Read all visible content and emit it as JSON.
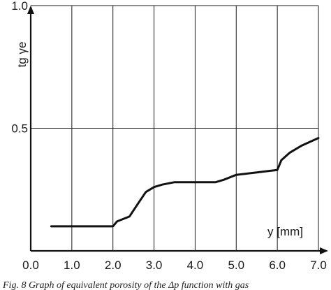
{
  "chart_data": {
    "type": "line",
    "xlabel": "y [mm]",
    "ylabel": "tg γe",
    "xlim": [
      0.0,
      7.0
    ],
    "ylim": [
      0.0,
      1.0
    ],
    "grid": true,
    "x_ticks": [
      "0.0",
      "1.0",
      "2.0",
      "3.0",
      "4.0",
      "5.0",
      "6.0",
      "7.0"
    ],
    "y_ticks": [
      {
        "value": 0.5,
        "label": "0.5"
      },
      {
        "value": 1.0,
        "label": "1.0"
      }
    ],
    "series": [
      {
        "x": [
          0.5,
          1.0,
          1.5,
          2.0,
          2.1,
          2.4,
          2.6,
          2.8,
          3.0,
          3.2,
          3.5,
          4.0,
          4.5,
          4.7,
          5.0,
          5.5,
          6.0,
          6.1,
          6.3,
          6.6,
          7.0
        ],
        "y": [
          0.1,
          0.1,
          0.1,
          0.1,
          0.12,
          0.14,
          0.19,
          0.24,
          0.26,
          0.27,
          0.28,
          0.28,
          0.28,
          0.29,
          0.31,
          0.32,
          0.33,
          0.37,
          0.4,
          0.43,
          0.46
        ]
      }
    ]
  },
  "caption": "Fig. 8 Graph of equivalent porosity of the Δp function with gas"
}
